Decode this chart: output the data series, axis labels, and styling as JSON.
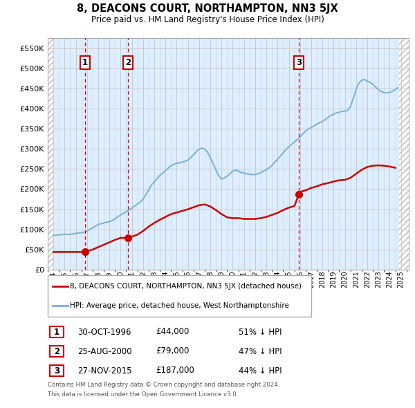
{
  "title": "8, DEACONS COURT, NORTHAMPTON, NN3 5JX",
  "subtitle": "Price paid vs. HM Land Registry's House Price Index (HPI)",
  "legend_line1": "8, DEACONS COURT, NORTHAMPTON, NN3 5JX (detached house)",
  "legend_line2": "HPI: Average price, detached house, West Northamptonshire",
  "footer1": "Contains HM Land Registry data © Crown copyright and database right 2024.",
  "footer2": "This data is licensed under the Open Government Licence v3.0.",
  "transactions": [
    {
      "num": 1,
      "date": "30-OCT-1996",
      "price": 44000,
      "pct": "51% ↓ HPI",
      "x": 1996.83
    },
    {
      "num": 2,
      "date": "25-AUG-2000",
      "price": 79000,
      "pct": "47% ↓ HPI",
      "x": 2000.64
    },
    {
      "num": 3,
      "date": "27-NOV-2015",
      "price": 187000,
      "pct": "44% ↓ HPI",
      "x": 2015.9
    }
  ],
  "price_color": "#cc0000",
  "hpi_color": "#7ab0d4",
  "hatch_color": "#bbbbbb",
  "grid_color": "#cccccc",
  "bg_color": "#ddeeff",
  "ylim": [
    0,
    575000
  ],
  "yticks": [
    0,
    50000,
    100000,
    150000,
    200000,
    250000,
    300000,
    350000,
    400000,
    450000,
    500000,
    550000
  ],
  "xlim_start": 1993.5,
  "xlim_end": 2025.7,
  "hpi_data_x": [
    1994.0,
    1994.25,
    1994.5,
    1994.75,
    1995.0,
    1995.25,
    1995.5,
    1995.75,
    1996.0,
    1996.25,
    1996.5,
    1996.75,
    1997.0,
    1997.25,
    1997.5,
    1997.75,
    1998.0,
    1998.25,
    1998.5,
    1998.75,
    1999.0,
    1999.25,
    1999.5,
    1999.75,
    2000.0,
    2000.25,
    2000.5,
    2000.75,
    2001.0,
    2001.25,
    2001.5,
    2001.75,
    2002.0,
    2002.25,
    2002.5,
    2002.75,
    2003.0,
    2003.25,
    2003.5,
    2003.75,
    2004.0,
    2004.25,
    2004.5,
    2004.75,
    2005.0,
    2005.25,
    2005.5,
    2005.75,
    2006.0,
    2006.25,
    2006.5,
    2006.75,
    2007.0,
    2007.25,
    2007.5,
    2007.75,
    2008.0,
    2008.25,
    2008.5,
    2008.75,
    2009.0,
    2009.25,
    2009.5,
    2009.75,
    2010.0,
    2010.25,
    2010.5,
    2010.75,
    2011.0,
    2011.25,
    2011.5,
    2011.75,
    2012.0,
    2012.25,
    2012.5,
    2012.75,
    2013.0,
    2013.25,
    2013.5,
    2013.75,
    2014.0,
    2014.25,
    2014.5,
    2014.75,
    2015.0,
    2015.25,
    2015.5,
    2015.75,
    2016.0,
    2016.25,
    2016.5,
    2016.75,
    2017.0,
    2017.25,
    2017.5,
    2017.75,
    2018.0,
    2018.25,
    2018.5,
    2018.75,
    2019.0,
    2019.25,
    2019.5,
    2019.75,
    2020.0,
    2020.25,
    2020.5,
    2020.75,
    2021.0,
    2021.25,
    2021.5,
    2021.75,
    2022.0,
    2022.25,
    2022.5,
    2022.75,
    2023.0,
    2023.25,
    2023.5,
    2023.75,
    2024.0,
    2024.25,
    2024.5,
    2024.75
  ],
  "hpi_data_y": [
    85000,
    86000,
    86500,
    87000,
    88000,
    87500,
    88000,
    89000,
    90000,
    91000,
    92000,
    93000,
    96000,
    100000,
    104000,
    108000,
    112000,
    114000,
    116000,
    118000,
    119000,
    122000,
    126000,
    131000,
    136000,
    140000,
    144000,
    148000,
    153000,
    158000,
    163000,
    168000,
    175000,
    186000,
    198000,
    210000,
    218000,
    226000,
    234000,
    240000,
    246000,
    252000,
    258000,
    262000,
    264000,
    265000,
    267000,
    269000,
    272000,
    278000,
    285000,
    293000,
    299000,
    302000,
    299000,
    292000,
    278000,
    263000,
    248000,
    233000,
    225000,
    228000,
    232000,
    238000,
    245000,
    247000,
    245000,
    241000,
    240000,
    238000,
    237000,
    236000,
    236000,
    238000,
    241000,
    245000,
    248000,
    253000,
    259000,
    267000,
    274000,
    282000,
    290000,
    298000,
    305000,
    311000,
    317000,
    323000,
    330000,
    337000,
    344000,
    349000,
    353000,
    357000,
    361000,
    365000,
    368000,
    373000,
    378000,
    383000,
    386000,
    389000,
    391000,
    393000,
    394000,
    395000,
    405000,
    425000,
    448000,
    463000,
    470000,
    472000,
    468000,
    465000,
    460000,
    453000,
    447000,
    442000,
    440000,
    439000,
    440000,
    443000,
    447000,
    452000
  ],
  "price_data_x": [
    1994.0,
    1994.5,
    1995.0,
    1995.5,
    1996.0,
    1996.5,
    1996.83,
    1997.0,
    1997.5,
    1998.0,
    1998.5,
    1999.0,
    1999.5,
    2000.0,
    2000.5,
    2000.64,
    2001.0,
    2001.5,
    2002.0,
    2002.5,
    2003.0,
    2003.5,
    2004.0,
    2004.5,
    2005.0,
    2005.5,
    2006.0,
    2006.5,
    2007.0,
    2007.5,
    2008.0,
    2008.5,
    2009.0,
    2009.5,
    2010.0,
    2010.5,
    2011.0,
    2011.5,
    2012.0,
    2012.5,
    2013.0,
    2013.5,
    2014.0,
    2014.5,
    2015.0,
    2015.5,
    2015.9,
    2016.0,
    2016.5,
    2017.0,
    2017.5,
    2018.0,
    2018.5,
    2019.0,
    2019.5,
    2020.0,
    2020.5,
    2021.0,
    2021.5,
    2022.0,
    2022.5,
    2023.0,
    2023.5,
    2024.0,
    2024.5
  ],
  "price_data_y": [
    44000,
    44000,
    44000,
    44000,
    44000,
    44000,
    44000,
    46000,
    50000,
    56000,
    62000,
    68000,
    74000,
    79000,
    79000,
    79000,
    82000,
    87000,
    96000,
    107000,
    116000,
    124000,
    131000,
    138000,
    142000,
    146000,
    150000,
    155000,
    160000,
    162000,
    157000,
    148000,
    138000,
    130000,
    128000,
    128000,
    126000,
    126000,
    126000,
    128000,
    131000,
    136000,
    141000,
    148000,
    154000,
    158000,
    187000,
    193000,
    197000,
    203000,
    207000,
    212000,
    215000,
    219000,
    222000,
    223000,
    228000,
    238000,
    248000,
    255000,
    258000,
    259000,
    258000,
    256000,
    253000
  ]
}
